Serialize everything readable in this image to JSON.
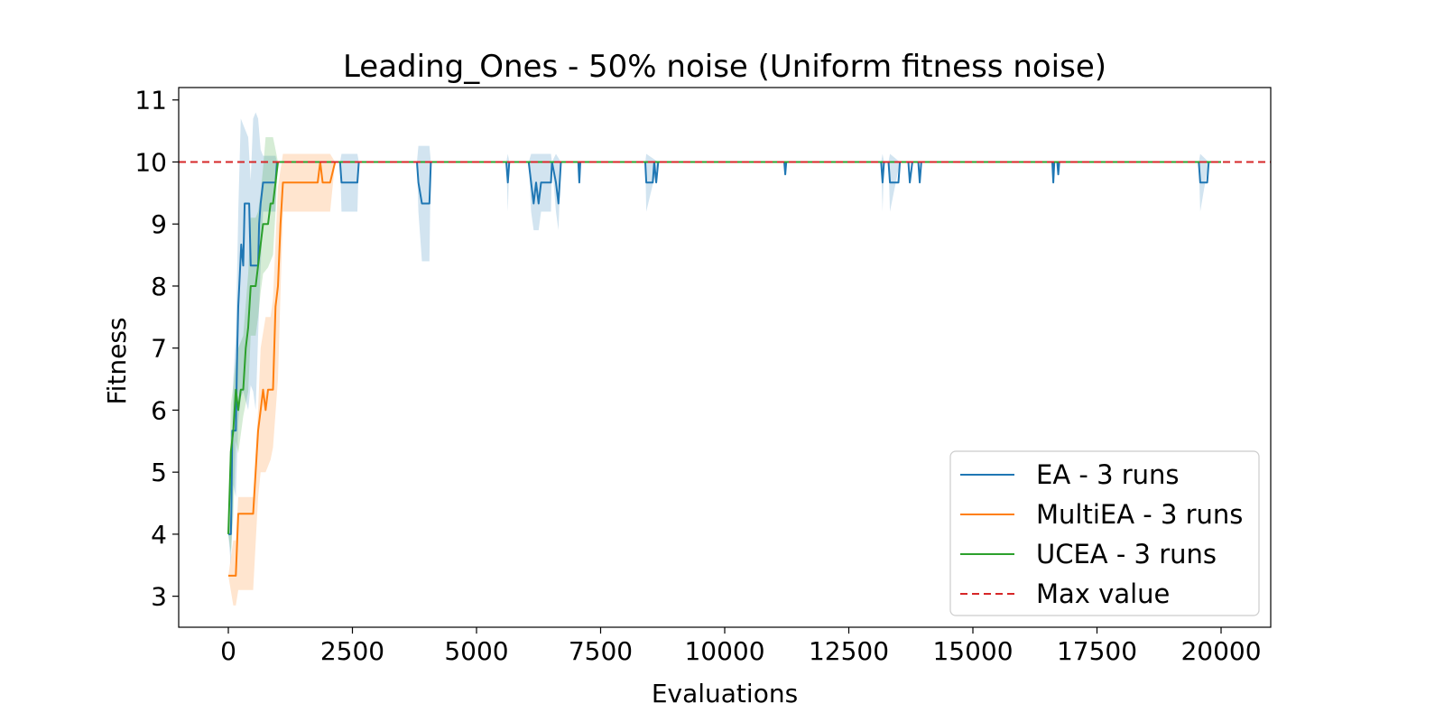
{
  "chart_data": {
    "type": "line",
    "title": "Leading_Ones - 50% noise (Uniform fitness noise)",
    "xlabel": "Evaluations",
    "ylabel": "Fitness",
    "xlim": [
      -1000,
      21000
    ],
    "ylim": [
      2.5,
      11.2
    ],
    "xticks": [
      "0",
      "2500",
      "5000",
      "7500",
      "10000",
      "12500",
      "15000",
      "17500",
      "20000"
    ],
    "yticks": [
      "3",
      "4",
      "5",
      "6",
      "7",
      "8",
      "9",
      "10",
      "11"
    ],
    "grid": false,
    "legend_position": "bottom-right",
    "max_value": 10,
    "series": [
      {
        "name": "EA - 3 runs",
        "color": "#1f77b4",
        "band_color": "#1f77b4",
        "points": [
          [
            0,
            4
          ],
          [
            50,
            4
          ],
          [
            60,
            4.33
          ],
          [
            80,
            5.67
          ],
          [
            150,
            5.67
          ],
          [
            180,
            7
          ],
          [
            200,
            7.67
          ],
          [
            220,
            8
          ],
          [
            260,
            8.67
          ],
          [
            300,
            8.33
          ],
          [
            330,
            9.33
          ],
          [
            420,
            9.33
          ],
          [
            450,
            8.33
          ],
          [
            600,
            8.33
          ],
          [
            620,
            9
          ],
          [
            650,
            9.33
          ],
          [
            700,
            9.67
          ],
          [
            950,
            9.67
          ],
          [
            980,
            10
          ],
          [
            2250,
            10
          ],
          [
            2280,
            9.67
          ],
          [
            2600,
            9.67
          ],
          [
            2630,
            10
          ],
          [
            3800,
            10
          ],
          [
            3830,
            9.67
          ],
          [
            3900,
            9.33
          ],
          [
            4050,
            9.33
          ],
          [
            4080,
            10
          ],
          [
            5600,
            10
          ],
          [
            5630,
            9.67
          ],
          [
            5660,
            10
          ],
          [
            6050,
            10
          ],
          [
            6100,
            9.67
          ],
          [
            6150,
            9.33
          ],
          [
            6200,
            9.67
          ],
          [
            6250,
            9.33
          ],
          [
            6300,
            9.67
          ],
          [
            6500,
            9.67
          ],
          [
            6520,
            10
          ],
          [
            6600,
            9.67
          ],
          [
            6650,
            9.33
          ],
          [
            6700,
            10
          ],
          [
            7050,
            10
          ],
          [
            7070,
            9.67
          ],
          [
            7090,
            10
          ],
          [
            8400,
            10
          ],
          [
            8420,
            9.67
          ],
          [
            8550,
            9.67
          ],
          [
            8580,
            10
          ],
          [
            8620,
            9.67
          ],
          [
            8660,
            10
          ],
          [
            11200,
            10
          ],
          [
            11220,
            9.8
          ],
          [
            11240,
            10
          ],
          [
            13150,
            10
          ],
          [
            13180,
            9.67
          ],
          [
            13210,
            10
          ],
          [
            13300,
            10
          ],
          [
            13330,
            9.67
          ],
          [
            13500,
            9.67
          ],
          [
            13530,
            10
          ],
          [
            13700,
            10
          ],
          [
            13730,
            9.67
          ],
          [
            13780,
            10
          ],
          [
            13900,
            10
          ],
          [
            13930,
            9.67
          ],
          [
            13960,
            10
          ],
          [
            16600,
            10
          ],
          [
            16620,
            9.67
          ],
          [
            16640,
            10
          ],
          [
            16700,
            10
          ],
          [
            16720,
            9.8
          ],
          [
            16740,
            10
          ],
          [
            19550,
            10
          ],
          [
            19580,
            9.67
          ],
          [
            19720,
            9.67
          ],
          [
            19750,
            10
          ],
          [
            20000,
            10
          ]
        ],
        "upper": [
          [
            0,
            4
          ],
          [
            50,
            4.4
          ],
          [
            100,
            6.5
          ],
          [
            150,
            7.2
          ],
          [
            200,
            9.2
          ],
          [
            250,
            10.7
          ],
          [
            300,
            10.6
          ],
          [
            400,
            10.4
          ],
          [
            450,
            9.7
          ],
          [
            500,
            10.7
          ],
          [
            550,
            10.8
          ],
          [
            600,
            10.7
          ],
          [
            650,
            10.2
          ],
          [
            700,
            10.1
          ],
          [
            950,
            10.1
          ],
          [
            980,
            10
          ],
          [
            2250,
            10
          ],
          [
            2280,
            10.13
          ],
          [
            2600,
            10.13
          ],
          [
            2630,
            10
          ],
          [
            3800,
            10
          ],
          [
            3830,
            10.26
          ],
          [
            4050,
            10.26
          ],
          [
            4080,
            10
          ],
          [
            5600,
            10
          ],
          [
            5630,
            10.13
          ],
          [
            5660,
            10
          ],
          [
            6050,
            10
          ],
          [
            6100,
            10.13
          ],
          [
            6500,
            10.13
          ],
          [
            6520,
            10
          ],
          [
            6600,
            10.13
          ],
          [
            6700,
            10
          ],
          [
            8400,
            10
          ],
          [
            8420,
            10.13
          ],
          [
            8660,
            10
          ],
          [
            13150,
            10
          ],
          [
            13180,
            10.13
          ],
          [
            13210,
            10
          ],
          [
            13300,
            10
          ],
          [
            13330,
            10.13
          ],
          [
            13530,
            10
          ],
          [
            19550,
            10
          ],
          [
            19580,
            10.13
          ],
          [
            19750,
            10
          ],
          [
            20000,
            10
          ]
        ],
        "lower": [
          [
            0,
            4
          ],
          [
            50,
            3.5
          ],
          [
            100,
            4.8
          ],
          [
            150,
            4.6
          ],
          [
            200,
            5.8
          ],
          [
            250,
            6.2
          ],
          [
            300,
            6.3
          ],
          [
            400,
            6
          ],
          [
            450,
            6.4
          ],
          [
            500,
            6.3
          ],
          [
            550,
            6
          ],
          [
            600,
            7.2
          ],
          [
            650,
            8.3
          ],
          [
            700,
            9.2
          ],
          [
            950,
            9.2
          ],
          [
            980,
            10
          ],
          [
            2250,
            10
          ],
          [
            2280,
            9.2
          ],
          [
            2600,
            9.2
          ],
          [
            2630,
            10
          ],
          [
            3800,
            10
          ],
          [
            3830,
            9.2
          ],
          [
            3900,
            8.4
          ],
          [
            4050,
            8.4
          ],
          [
            4080,
            10
          ],
          [
            5600,
            10
          ],
          [
            5630,
            9.2
          ],
          [
            5660,
            10
          ],
          [
            6050,
            10
          ],
          [
            6100,
            9.2
          ],
          [
            6150,
            8.9
          ],
          [
            6250,
            8.9
          ],
          [
            6300,
            9.2
          ],
          [
            6500,
            9.2
          ],
          [
            6520,
            10
          ],
          [
            6600,
            9.2
          ],
          [
            6650,
            8.9
          ],
          [
            6700,
            10
          ],
          [
            8400,
            10
          ],
          [
            8420,
            9.2
          ],
          [
            8660,
            10
          ],
          [
            13150,
            10
          ],
          [
            13180,
            9.2
          ],
          [
            13210,
            10
          ],
          [
            13300,
            10
          ],
          [
            13330,
            9.2
          ],
          [
            13530,
            10
          ],
          [
            19550,
            10
          ],
          [
            19580,
            9.2
          ],
          [
            19750,
            10
          ],
          [
            20000,
            10
          ]
        ]
      },
      {
        "name": "MultiEA - 3 runs",
        "color": "#ff7f0e",
        "band_color": "#ff7f0e",
        "points": [
          [
            0,
            3.33
          ],
          [
            100,
            3.33
          ],
          [
            150,
            3.33
          ],
          [
            200,
            4.33
          ],
          [
            500,
            4.33
          ],
          [
            600,
            5.67
          ],
          [
            650,
            6
          ],
          [
            700,
            6.33
          ],
          [
            750,
            6
          ],
          [
            800,
            6.33
          ],
          [
            900,
            6.33
          ],
          [
            950,
            7.67
          ],
          [
            1000,
            8
          ],
          [
            1050,
            9
          ],
          [
            1100,
            9.67
          ],
          [
            1200,
            9.67
          ],
          [
            1800,
            9.67
          ],
          [
            1850,
            10
          ],
          [
            1900,
            9.67
          ],
          [
            2050,
            9.67
          ],
          [
            2150,
            10
          ],
          [
            20000,
            10
          ]
        ],
        "upper": [
          [
            0,
            3.33
          ],
          [
            100,
            3.9
          ],
          [
            150,
            3.9
          ],
          [
            200,
            4.6
          ],
          [
            500,
            4.6
          ],
          [
            600,
            6
          ],
          [
            650,
            7
          ],
          [
            750,
            7.5
          ],
          [
            850,
            7.5
          ],
          [
            900,
            7.8
          ],
          [
            1000,
            9.6
          ],
          [
            1100,
            10.13
          ],
          [
            1800,
            10.13
          ],
          [
            1900,
            10.13
          ],
          [
            2050,
            10.13
          ],
          [
            2150,
            10
          ],
          [
            20000,
            10
          ]
        ],
        "lower": [
          [
            0,
            3.33
          ],
          [
            100,
            2.85
          ],
          [
            150,
            2.85
          ],
          [
            200,
            3.1
          ],
          [
            500,
            3.1
          ],
          [
            600,
            4.6
          ],
          [
            650,
            5
          ],
          [
            750,
            5
          ],
          [
            850,
            5.2
          ],
          [
            900,
            5.4
          ],
          [
            1000,
            6.5
          ],
          [
            1100,
            9.2
          ],
          [
            1800,
            9.2
          ],
          [
            1900,
            9.2
          ],
          [
            2050,
            9.2
          ],
          [
            2150,
            10
          ],
          [
            20000,
            10
          ]
        ]
      },
      {
        "name": "UCEA - 3 runs",
        "color": "#2ca02c",
        "band_color": "#2ca02c",
        "points": [
          [
            0,
            4
          ],
          [
            50,
            5.33
          ],
          [
            100,
            5.67
          ],
          [
            150,
            6.33
          ],
          [
            200,
            6
          ],
          [
            250,
            6.33
          ],
          [
            300,
            6.33
          ],
          [
            350,
            7
          ],
          [
            400,
            7.33
          ],
          [
            450,
            8
          ],
          [
            550,
            8
          ],
          [
            600,
            8.33
          ],
          [
            650,
            8.67
          ],
          [
            700,
            9
          ],
          [
            800,
            9
          ],
          [
            850,
            9.33
          ],
          [
            900,
            9.33
          ],
          [
            950,
            9.67
          ],
          [
            1000,
            10
          ],
          [
            20000,
            10
          ]
        ],
        "upper": [
          [
            0,
            4
          ],
          [
            50,
            6.1
          ],
          [
            100,
            6.4
          ],
          [
            150,
            6.8
          ],
          [
            200,
            7
          ],
          [
            300,
            7.2
          ],
          [
            400,
            8.2
          ],
          [
            450,
            9.1
          ],
          [
            550,
            9.1
          ],
          [
            600,
            9.2
          ],
          [
            650,
            9.5
          ],
          [
            700,
            9.9
          ],
          [
            750,
            10.4
          ],
          [
            900,
            10.4
          ],
          [
            950,
            10.2
          ],
          [
            1000,
            10
          ],
          [
            20000,
            10
          ]
        ],
        "lower": [
          [
            0,
            4
          ],
          [
            50,
            3.7
          ],
          [
            100,
            4.3
          ],
          [
            150,
            5.5
          ],
          [
            200,
            5.3
          ],
          [
            300,
            5.9
          ],
          [
            400,
            6.3
          ],
          [
            450,
            7.2
          ],
          [
            550,
            7.2
          ],
          [
            600,
            7.5
          ],
          [
            650,
            7.9
          ],
          [
            700,
            8.2
          ],
          [
            800,
            8.3
          ],
          [
            900,
            8.5
          ],
          [
            950,
            9.2
          ],
          [
            1000,
            10
          ],
          [
            20000,
            10
          ]
        ]
      },
      {
        "name": "Max value",
        "color": "#d62728",
        "dashed": true
      }
    ]
  }
}
